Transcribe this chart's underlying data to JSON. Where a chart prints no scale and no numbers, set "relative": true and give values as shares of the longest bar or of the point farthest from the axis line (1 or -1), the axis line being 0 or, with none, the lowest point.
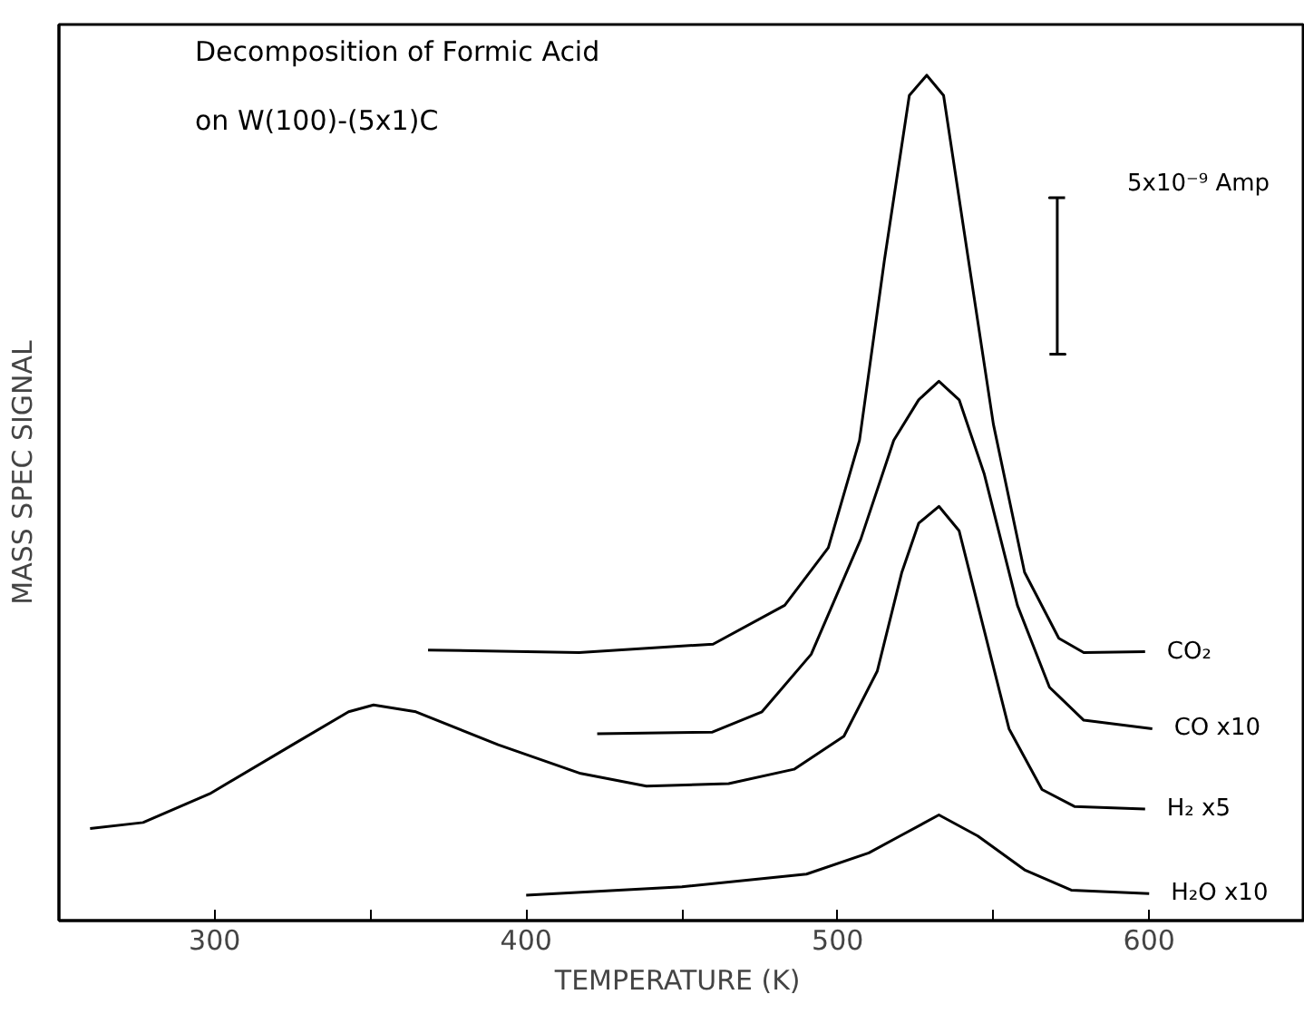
{
  "chart_data": {
    "type": "line",
    "title": "Decomposition of Formic Acid\non W(100)-(5x1)C",
    "xlabel": "TEMPERATURE  (K)",
    "ylabel": "MASS SPEC SIGNAL",
    "relative": true,
    "xlim": [
      250,
      650
    ],
    "xticks": [
      300,
      {
        "value": 350,
        "label": null
      },
      400,
      {
        "value": 450,
        "label": null
      },
      500,
      {
        "value": 550,
        "label": null
      },
      600
    ],
    "grid": false,
    "legend": false,
    "marker": "none",
    "line_style": "solid",
    "annotations": [
      "5x10⁻⁹ Amp"
    ],
    "series": [
      {
        "name": "CO₂",
        "color": "#000000",
        "x": [
          368.5,
          417,
          460,
          483,
          497,
          507,
          515,
          523,
          528.6,
          534,
          542,
          550,
          560,
          571,
          579,
          598.7
        ],
        "values": [
          0.32,
          0.317,
          0.327,
          0.373,
          0.441,
          0.568,
          0.781,
          0.976,
          1.0,
          0.976,
          0.781,
          0.587,
          0.412,
          0.334,
          0.317,
          0.318
        ]
      },
      {
        "name": "CO x10",
        "color": "#000000",
        "x": [
          422.8,
          459.8,
          475.7,
          491.5,
          507.4,
          518,
          526,
          532.5,
          539,
          547,
          557.7,
          568,
          579,
          601
        ],
        "values": [
          0.221,
          0.223,
          0.247,
          0.315,
          0.451,
          0.568,
          0.616,
          0.638,
          0.616,
          0.529,
          0.373,
          0.276,
          0.237,
          0.227
        ]
      },
      {
        "name": "H₂ x5",
        "color": "#000000",
        "x": [
          260,
          277,
          298.4,
          325,
          343,
          351,
          364.6,
          391,
          417.5,
          438.6,
          465,
          486,
          502,
          512.7,
          520.6,
          526,
          532.5,
          539,
          547,
          555,
          565.6,
          576,
          598.7
        ],
        "values": [
          0.109,
          0.116,
          0.15,
          0.208,
          0.247,
          0.255,
          0.247,
          0.208,
          0.174,
          0.159,
          0.162,
          0.179,
          0.218,
          0.295,
          0.412,
          0.47,
          0.49,
          0.461,
          0.344,
          0.227,
          0.155,
          0.135,
          0.132
        ]
      },
      {
        "color": "#000000",
        "x": [
          568,
          573,
          570.5,
          570.5,
          568,
          573
        ],
        "values": [
          0.67,
          0.67,
          0.67,
          0.855,
          0.855,
          0.855
        ]
      },
      {
        "name": "H₂O x10",
        "color": "#000000",
        "x": [
          400,
          450,
          490,
          510,
          520,
          532.5,
          545,
          560,
          575,
          600
        ],
        "values": [
          0.03,
          0.04,
          0.055,
          0.08,
          0.1,
          0.125,
          0.1,
          0.06,
          0.036,
          0.032
        ]
      }
    ]
  }
}
